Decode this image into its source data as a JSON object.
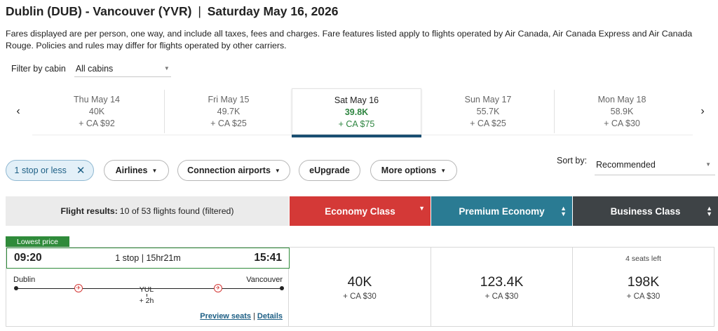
{
  "header": {
    "origin": "Dublin (DUB) - Vancouver (YVR)",
    "separator": "|",
    "date": "Saturday May 16, 2026"
  },
  "disclaimer": "Fares displayed are per person, one way, and include all taxes, fees and charges. Fare features listed apply to flights operated by Air Canada, Air Canada Express and Air Canada Rouge. Policies and rules may differ for flights operated by other carriers.",
  "cabin_filter": {
    "label": "Filter by cabin",
    "value": "All cabins"
  },
  "date_carousel": {
    "prev_icon": "chevron-left-icon",
    "next_icon": "chevron-right-icon",
    "dates": [
      {
        "date": "Thu May 14",
        "points": "40K",
        "cash": "+ CA $92",
        "selected": false
      },
      {
        "date": "Fri May 15",
        "points": "49.7K",
        "cash": "+ CA $25",
        "selected": false
      },
      {
        "date": "Sat May 16",
        "points": "39.8K",
        "cash": "+ CA $75",
        "selected": true
      },
      {
        "date": "Sun May 17",
        "points": "55.7K",
        "cash": "+ CA $25",
        "selected": false
      },
      {
        "date": "Mon May 18",
        "points": "58.9K",
        "cash": "+ CA $30",
        "selected": false
      }
    ]
  },
  "filters": {
    "stops": "1 stop or less",
    "airlines": "Airlines",
    "connection_airports": "Connection airports",
    "eupgrade": "eUpgrade",
    "more_options": "More options"
  },
  "sort": {
    "label": "Sort by:",
    "value": "Recommended"
  },
  "results": {
    "label": "Flight results:",
    "count_text": "10 of 53 flights found (filtered)"
  },
  "cabins": {
    "economy": "Economy Class",
    "premium": "Premium Economy",
    "business": "Business Class",
    "economy_color": "#d43937",
    "premium_color": "#2a7b93",
    "business_color": "#3e4346"
  },
  "flight": {
    "badge": "Lowest price",
    "departure_time": "09:20",
    "summary": "1 stop | 15hr21m",
    "arrival_time": "15:41",
    "origin_city": "Dublin",
    "destination_city": "Vancouver",
    "connection_airport": "YUL",
    "layover": "+ 2h",
    "preview_seats": "Preview seats",
    "link_separator": "|",
    "details": "Details",
    "economy": {
      "points": "40K",
      "cash": "+ CA $30"
    },
    "premium": {
      "points": "123.4K",
      "cash": "+ CA $30"
    },
    "business": {
      "seats_left": "4 seats left",
      "points": "198K",
      "cash": "+ CA $30"
    }
  }
}
